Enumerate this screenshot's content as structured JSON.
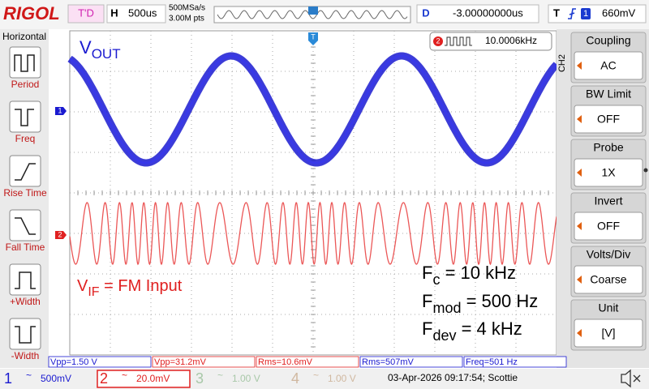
{
  "top_bar": {
    "logo": "RIGOL",
    "status": "T'D",
    "timebase_label": "H",
    "timebase": "500us",
    "sample_rate": "500MSa/s",
    "memory_depth": "3.00M pts",
    "delay_label": "D",
    "delay": "-3.00000000us",
    "trigger_label": "T",
    "trigger_source": "1",
    "trigger_level": "660mV"
  },
  "left_menu": {
    "title": "Horizontal",
    "items": [
      "Period",
      "Freq",
      "Rise Time",
      "Fall Time",
      "+Width",
      "-Width"
    ]
  },
  "right_menu": {
    "channel": "CH2",
    "items": [
      {
        "label": "Coupling",
        "value": "AC"
      },
      {
        "label": "BW Limit",
        "value": "OFF"
      },
      {
        "label": "Probe",
        "value": "1X"
      },
      {
        "label": "Invert",
        "value": "OFF"
      },
      {
        "label": "Volts/Div",
        "value": "Coarse"
      },
      {
        "label": "Unit",
        "value": "[V]"
      }
    ]
  },
  "screen": {
    "trigger_marker": "T",
    "channel_markers": [
      "1",
      "2"
    ],
    "counter": {
      "channel": "2",
      "value": "10.0006kHz"
    },
    "annotations": {
      "vout": {
        "symbol": "V",
        "subscript": "OUT"
      },
      "vif": {
        "symbol": "V",
        "subscript": "IF",
        "text": " = FM Input"
      },
      "fc": {
        "symbol": "F",
        "subscript": "c",
        "text": " = 10 kHz"
      },
      "fmod": {
        "symbol": "F",
        "subscript": "mod",
        "text": " = 500 Hz"
      },
      "fdev": {
        "symbol": "F",
        "subscript": "dev",
        "text": " = 4 kHz"
      }
    }
  },
  "measurements": [
    {
      "text": "Vpp=1.50 V",
      "color": "#1a1ad0"
    },
    {
      "text": "Vpp=31.2mV",
      "color": "#e02020"
    },
    {
      "text": "Rms=10.6mV",
      "color": "#e02020"
    },
    {
      "text": "Rms=507mV",
      "color": "#1a1ad0"
    },
    {
      "text": "Freq=501 Hz",
      "color": "#1a1ad0"
    }
  ],
  "channels": [
    {
      "number": "1",
      "coupling": "~",
      "scale": "500mV",
      "color": "#1a1ad0"
    },
    {
      "number": "2",
      "coupling": "~",
      "scale": "20.0mV",
      "color": "#e02020"
    },
    {
      "number": "3",
      "coupling": "~",
      "scale": "1.00 V",
      "color": "#a8c8a8"
    },
    {
      "number": "4",
      "coupling": "~",
      "scale": "1.00 V",
      "color": "#d0b8a0"
    }
  ],
  "status": "03-Apr-2026 09:17:54; Scottie"
}
